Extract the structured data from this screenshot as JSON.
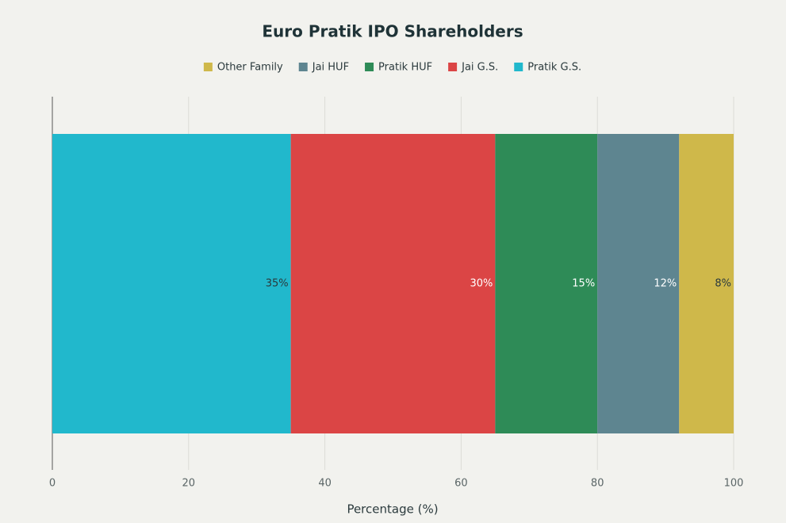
{
  "chart_data": {
    "type": "stacked-barh",
    "title": "Euro Pratik IPO Shareholders",
    "x_label": "Percentage (%)",
    "categories": [
      null
    ],
    "series": [
      {
        "name": "Other Family",
        "color": "#cfb84a",
        "values": [
          8
        ],
        "value_labels": [
          "8%"
        ]
      },
      {
        "name": "Jai HUF",
        "color": "#5e8590",
        "values": [
          12
        ],
        "value_labels": [
          "12%"
        ]
      },
      {
        "name": "Pratik HUF",
        "color": "#2e8b57",
        "values": [
          15
        ],
        "value_labels": [
          "15%"
        ]
      },
      {
        "name": "Jai G.S.",
        "color": "#db4545",
        "values": [
          30
        ],
        "value_labels": [
          "30%"
        ]
      },
      {
        "name": "Pratik G.S.",
        "color": "#21b8cc",
        "values": [
          35
        ],
        "value_labels": [
          "35%"
        ]
      }
    ],
    "xlim": [
      0,
      100
    ],
    "xticks": [
      0,
      20,
      40,
      60,
      80,
      100
    ],
    "grid": true
  }
}
